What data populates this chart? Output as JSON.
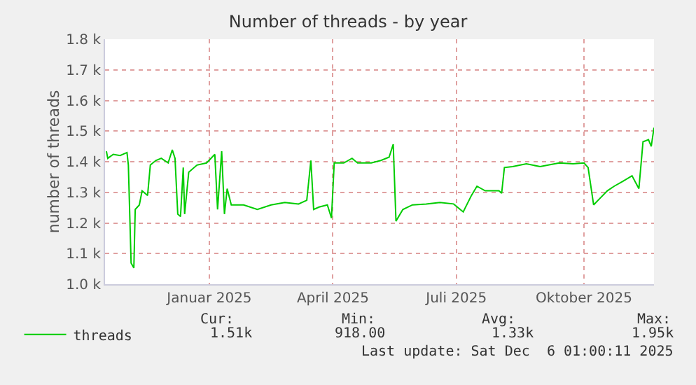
{
  "chart_data": {
    "type": "line",
    "title": "Number of threads - by year",
    "ylabel": "number of threads",
    "x": [
      "2024-11-02",
      "2024-11-03",
      "2024-11-07",
      "2024-11-12",
      "2024-11-17",
      "2024-11-18",
      "2024-11-20",
      "2024-11-22",
      "2024-11-23",
      "2024-11-26",
      "2024-11-28",
      "2024-12-02",
      "2024-12-04",
      "2024-12-08",
      "2024-12-12",
      "2024-12-17",
      "2024-12-20",
      "2024-12-22",
      "2024-12-24",
      "2024-12-26",
      "2024-12-28",
      "2024-12-29",
      "2025-01-01",
      "2025-01-07",
      "2025-01-14",
      "2025-01-20",
      "2025-01-22",
      "2025-01-25",
      "2025-01-27",
      "2025-01-29",
      "2025-02-01",
      "2025-02-10",
      "2025-02-20",
      "2025-03-02",
      "2025-03-12",
      "2025-03-22",
      "2025-03-28",
      "2025-03-31",
      "2025-04-02",
      "2025-04-06",
      "2025-04-12",
      "2025-04-15",
      "2025-04-17",
      "2025-04-24",
      "2025-04-30",
      "2025-05-04",
      "2025-05-14",
      "2025-05-21",
      "2025-05-27",
      "2025-05-30",
      "2025-06-01",
      "2025-06-06",
      "2025-06-13",
      "2025-06-23",
      "2025-07-03",
      "2025-07-13",
      "2025-07-20",
      "2025-07-26",
      "2025-07-30",
      "2025-08-05",
      "2025-08-15",
      "2025-08-17",
      "2025-08-19",
      "2025-08-25",
      "2025-09-04",
      "2025-09-14",
      "2025-09-28",
      "2025-10-08",
      "2025-10-16",
      "2025-10-19",
      "2025-10-23",
      "2025-10-28",
      "2025-11-02",
      "2025-11-07",
      "2025-11-13",
      "2025-11-20",
      "2025-11-25",
      "2025-11-28",
      "2025-12-02",
      "2025-12-04",
      "2025-12-06"
    ],
    "series": [
      {
        "name": "threads",
        "color": "#00cc00",
        "values": [
          1434,
          1411,
          1424,
          1420,
          1430,
          1389,
          1069,
          1053,
          1244,
          1259,
          1305,
          1290,
          1389,
          1404,
          1411,
          1396,
          1439,
          1411,
          1229,
          1221,
          1381,
          1229,
          1366,
          1389,
          1396,
          1424,
          1244,
          1434,
          1229,
          1312,
          1259,
          1259,
          1244,
          1259,
          1267,
          1262,
          1274,
          1404,
          1244,
          1252,
          1259,
          1216,
          1396,
          1396,
          1411,
          1396,
          1396,
          1404,
          1415,
          1457,
          1206,
          1244,
          1259,
          1262,
          1267,
          1262,
          1236,
          1290,
          1320,
          1305,
          1305,
          1297,
          1381,
          1384,
          1393,
          1384,
          1396,
          1393,
          1396,
          1381,
          1259,
          1282,
          1305,
          1320,
          1335,
          1354,
          1312,
          1465,
          1472,
          1450,
          1511
        ]
      }
    ],
    "xlim": [
      "2024-11-01",
      "2025-12-06"
    ],
    "xticks": [
      {
        "value": "2025-01-16",
        "label": "Januar 2025"
      },
      {
        "value": "2025-04-16",
        "label": "April 2025"
      },
      {
        "value": "2025-07-15",
        "label": "Juli 2025"
      },
      {
        "value": "2025-10-16",
        "label": "Oktober 2025"
      }
    ],
    "ylim": [
      1000,
      1800
    ],
    "yticks": [
      {
        "value": 1000,
        "label": "1.0 k"
      },
      {
        "value": 1100,
        "label": "1.1 k"
      },
      {
        "value": 1200,
        "label": "1.2 k"
      },
      {
        "value": 1300,
        "label": "1.3 k"
      },
      {
        "value": 1400,
        "label": "1.4 k"
      },
      {
        "value": 1500,
        "label": "1.5 k"
      },
      {
        "value": 1600,
        "label": "1.6 k"
      },
      {
        "value": 1700,
        "label": "1.7 k"
      },
      {
        "value": 1800,
        "label": "1.8 k"
      }
    ],
    "grid": true,
    "legend": "bottom left",
    "marker": "none",
    "line_style": "solid",
    "annotations": [
      "Cur:",
      "Min:",
      "Avg:",
      "Max:",
      "1.51k",
      "918.00",
      "1.33k",
      "1.95k",
      "Last update: Sat Dec  6 01:00:11 2025"
    ]
  }
}
